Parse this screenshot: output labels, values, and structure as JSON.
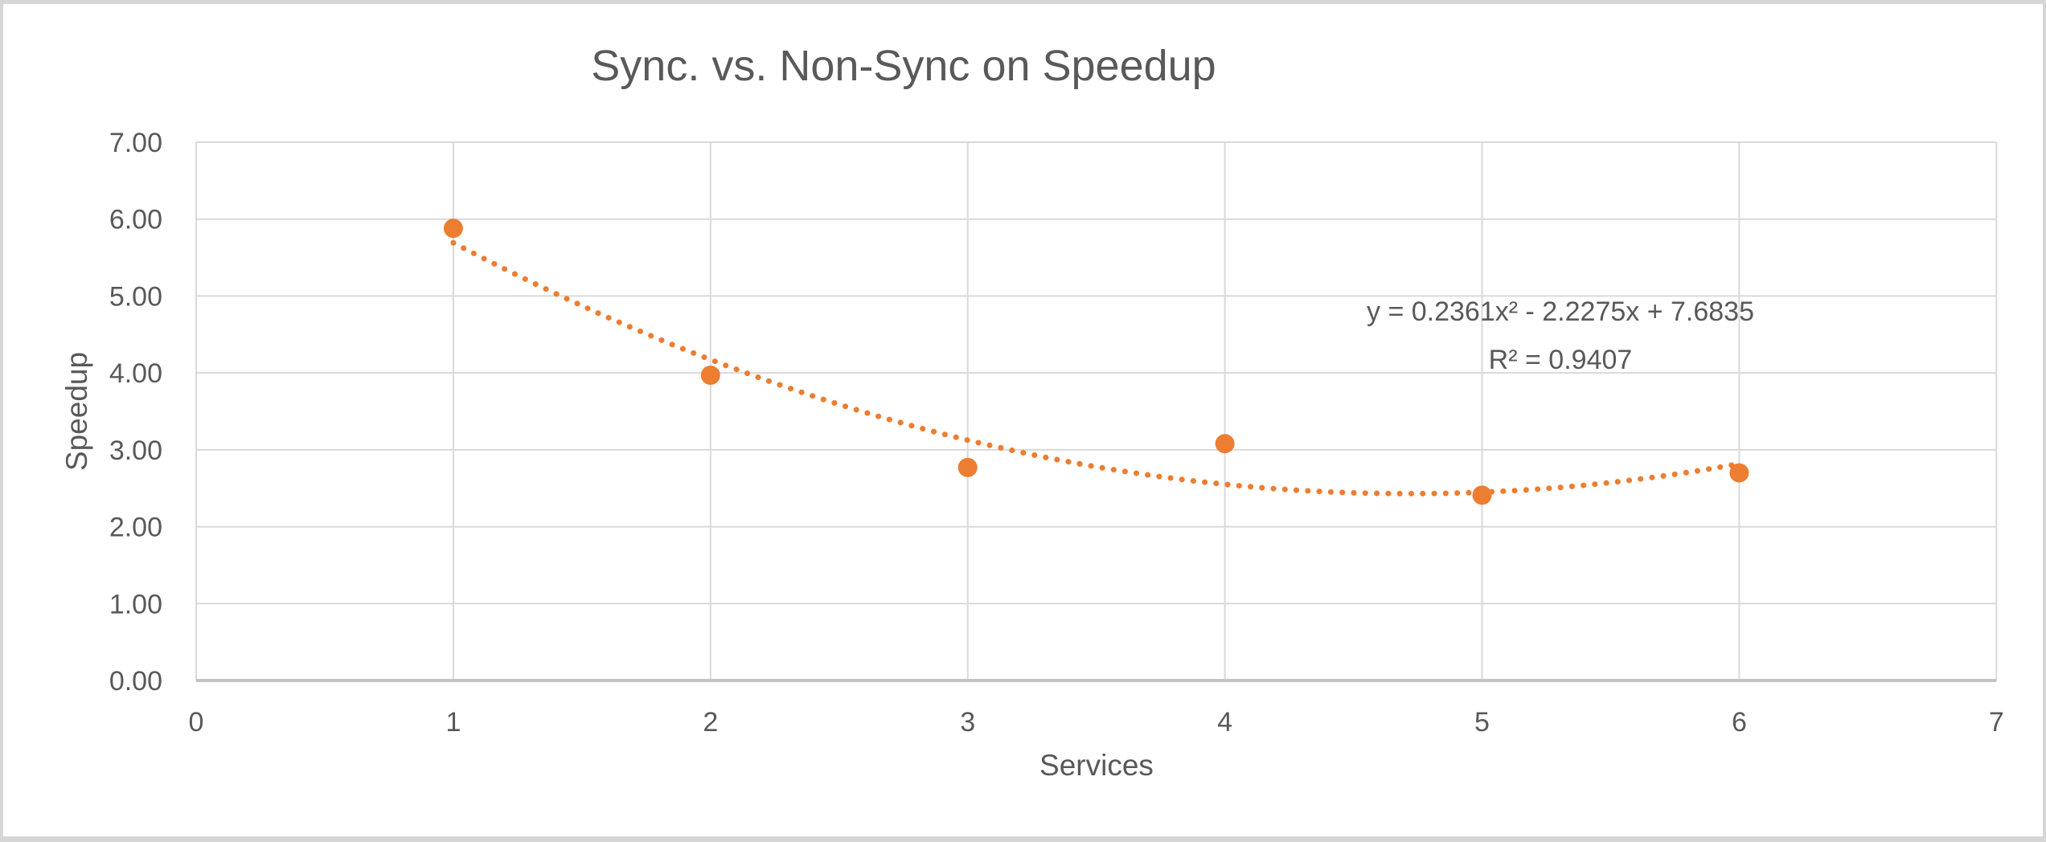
{
  "chart_data": {
    "type": "scatter",
    "title": "Sync. vs. Non-Sync on Speedup",
    "xlabel": "Services",
    "ylabel": "Speedup",
    "xlim": [
      0,
      7
    ],
    "ylim": [
      0,
      7
    ],
    "x_ticks": [
      "0",
      "1",
      "2",
      "3",
      "4",
      "5",
      "6",
      "7"
    ],
    "y_ticks": [
      "0.00",
      "1.00",
      "2.00",
      "3.00",
      "4.00",
      "5.00",
      "6.00",
      "7.00"
    ],
    "grid": true,
    "legend": "none",
    "series": [
      {
        "name": "Speedup",
        "x": [
          1,
          2,
          3,
          4,
          5,
          6
        ],
        "y": [
          5.88,
          3.97,
          2.77,
          3.08,
          2.41,
          2.7
        ]
      }
    ],
    "trendline": {
      "type": "polynomial",
      "order": 2,
      "a": 0.2361,
      "b": -2.2275,
      "c": 7.6835,
      "x_start": 1,
      "x_end": 6,
      "equation_label": "y = 0.2361x² - 2.2275x + 7.6835",
      "r2_label": "R² = 0.9407"
    },
    "colors": {
      "series": "#ED7D31",
      "trendline": "#ED7D31",
      "gridline": "#D9D9D9",
      "axis_line": "#C3C3C3",
      "text": "#595959"
    }
  }
}
